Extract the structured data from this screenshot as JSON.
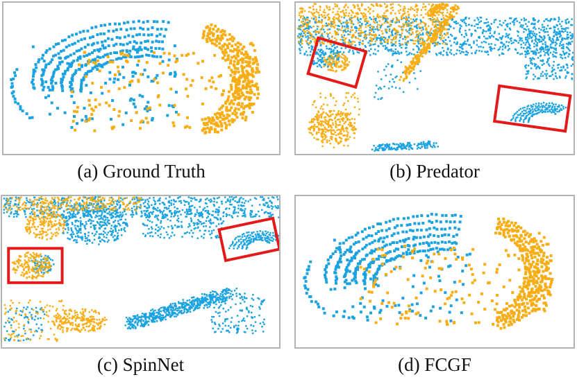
{
  "colors": {
    "source_points": "#1ba2e0",
    "target_points": "#f8ad14",
    "highlight_box": "#e41a1a",
    "panel_border": "#b3b3b3"
  },
  "panels": [
    {
      "id": "a",
      "caption": "(a) Ground Truth"
    },
    {
      "id": "b",
      "caption": "(b) Predator"
    },
    {
      "id": "c",
      "caption": "(c) SpinNet"
    },
    {
      "id": "d",
      "caption": "(d) FCGF"
    }
  ]
}
